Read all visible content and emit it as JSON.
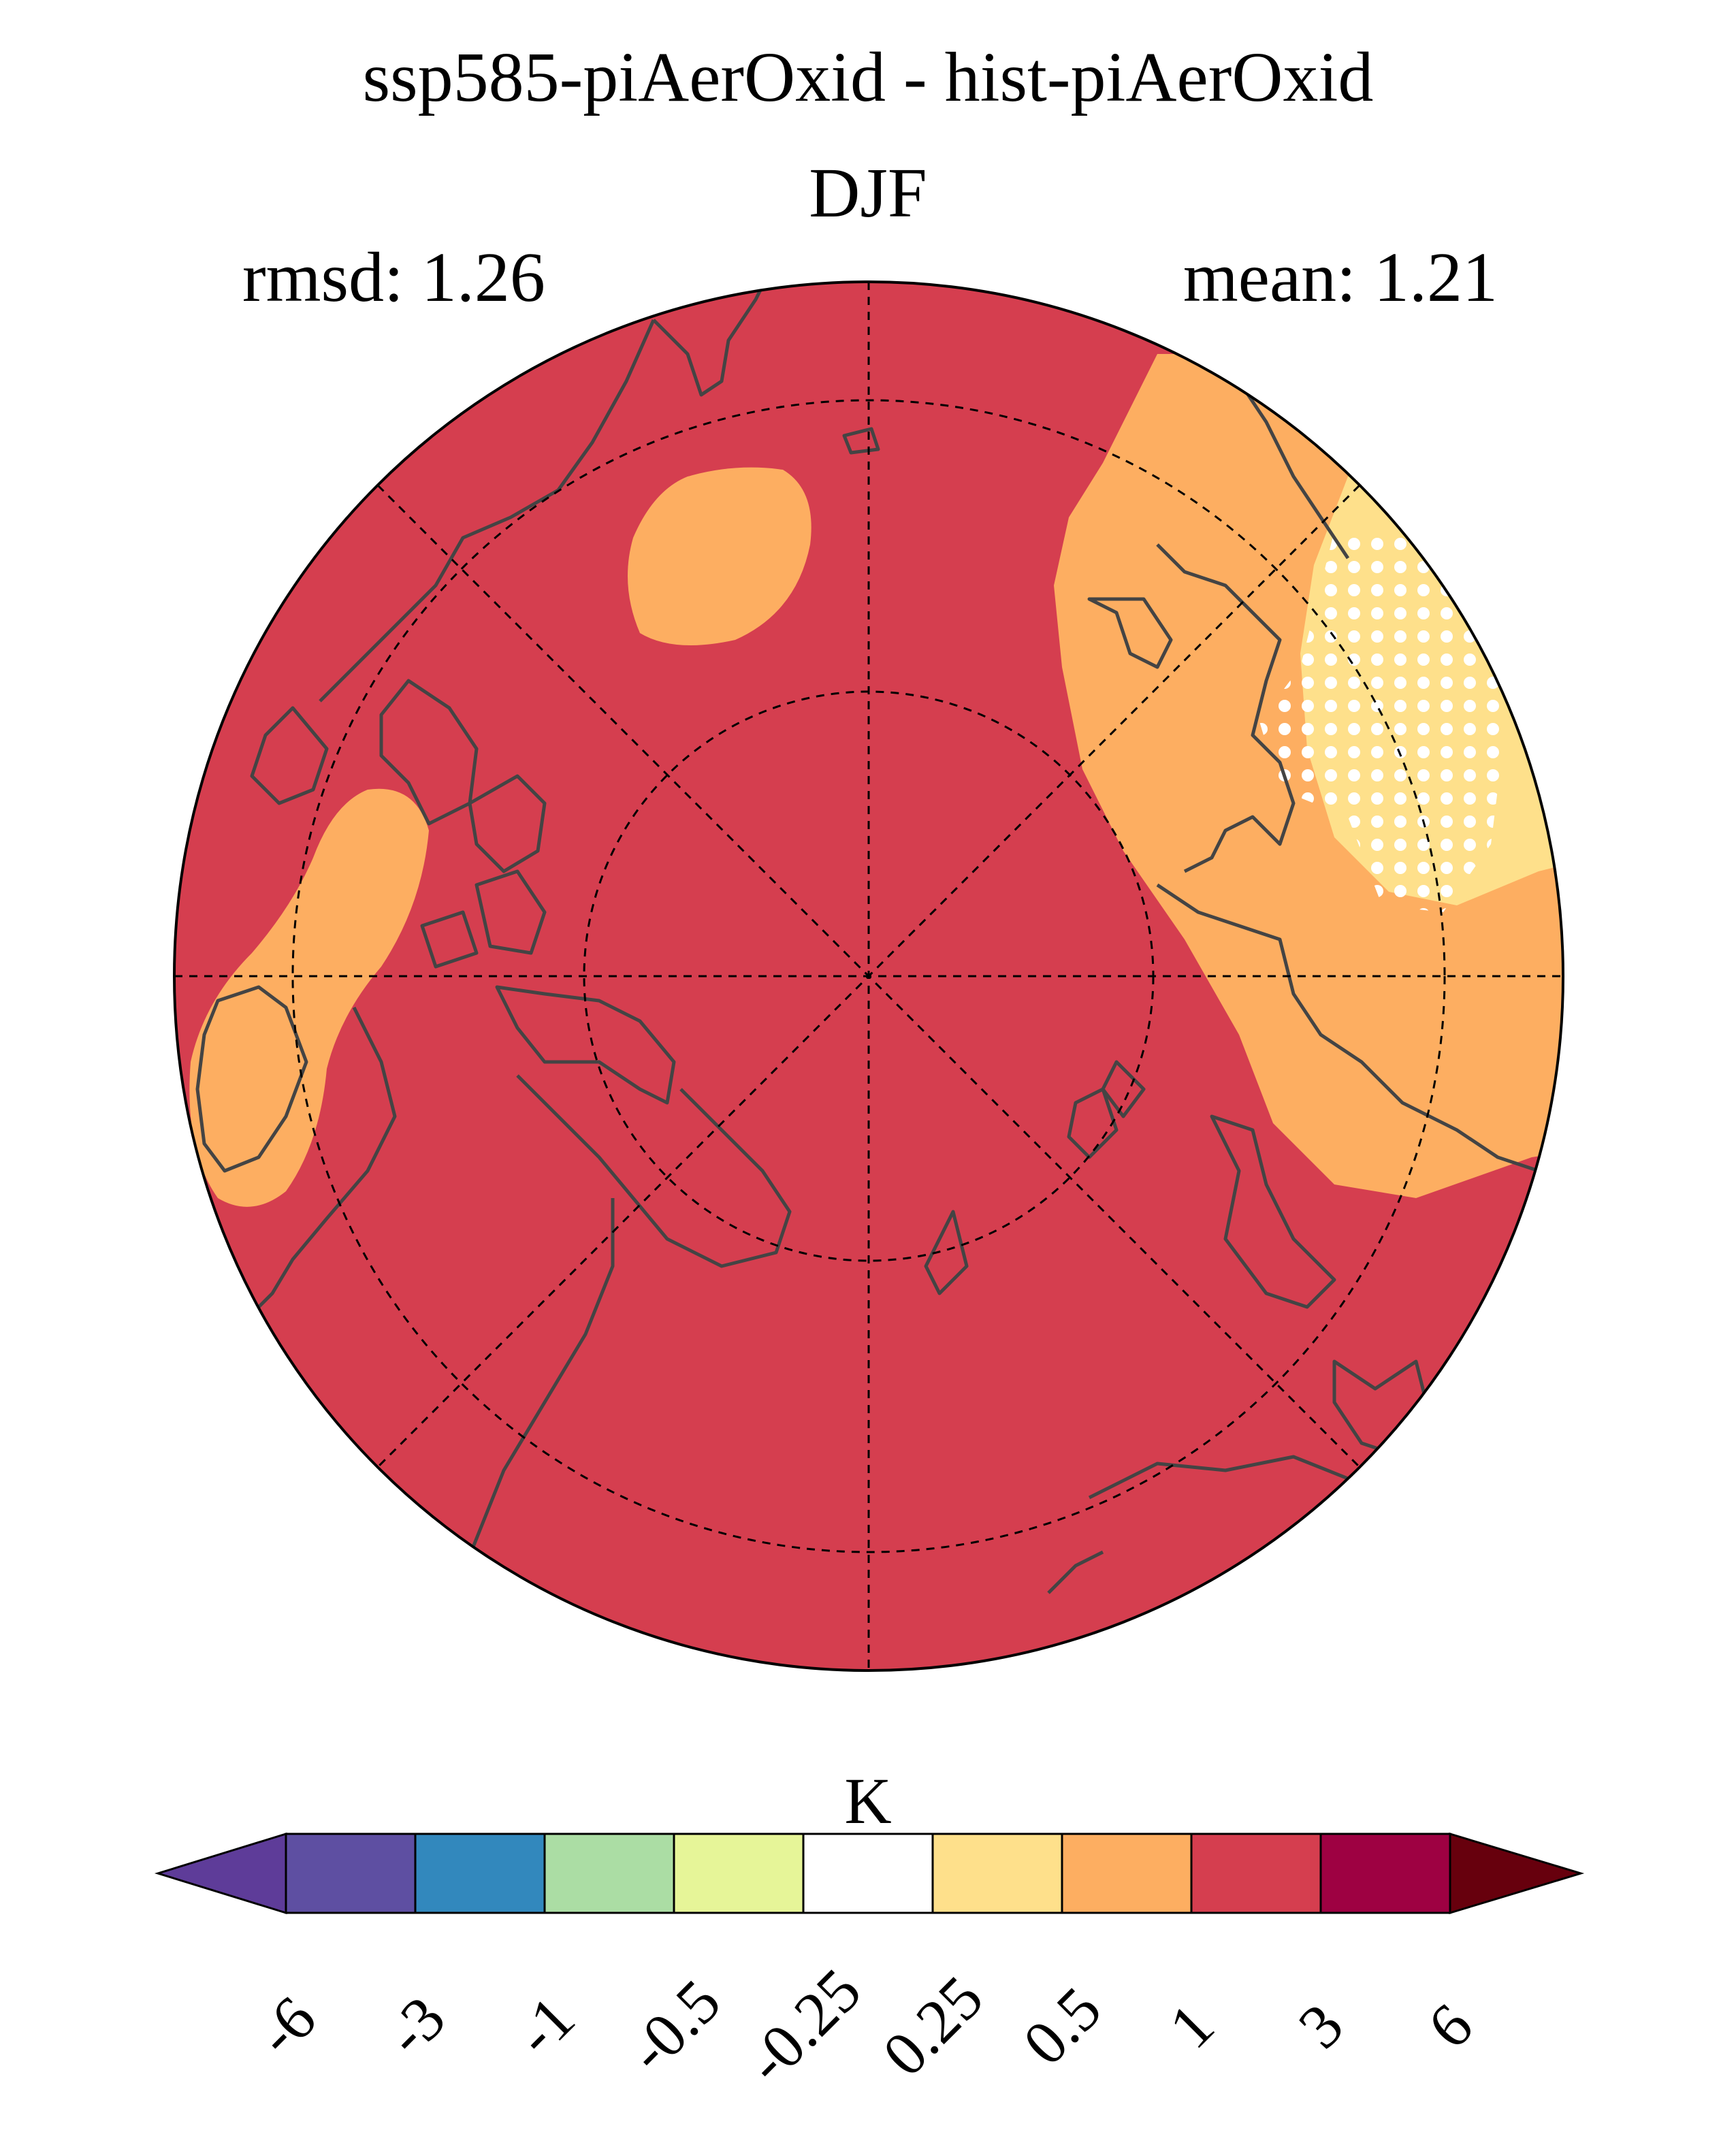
{
  "title_line1": "ssp585-piAerOxid - hist-piAerOxid",
  "title_line2": "DJF",
  "stats": {
    "rmsd": "rmsd: 1.26",
    "mean": "mean: 1.21"
  },
  "colorbar": {
    "unit": "K",
    "ticks": [
      "-6",
      "-3",
      "-1",
      "-0.5",
      "-0.25",
      "0.25",
      "0.5",
      "1",
      "3",
      "6"
    ],
    "colors": [
      "#5e3c99",
      "#5e4fa2",
      "#3288bd",
      "#abdda4",
      "#e6f598",
      "#ffffff",
      "#fee08b",
      "#fdae61",
      "#d53e4f",
      "#9e0142",
      "#67000d"
    ]
  },
  "map": {
    "projection": "north-polar-stereographic",
    "background_color": "#d53e4f",
    "regions": [
      {
        "name": "pacific-warm-lobe",
        "color": "#fdae61"
      },
      {
        "name": "siberia-peak",
        "color": "#fee08b",
        "stippled": true
      },
      {
        "name": "north-atlantic-patch",
        "color": "#fdae61"
      },
      {
        "name": "north-america-patch",
        "color": "#fdae61"
      }
    ],
    "coastline_color": "#444444",
    "graticule": "dashed"
  }
}
